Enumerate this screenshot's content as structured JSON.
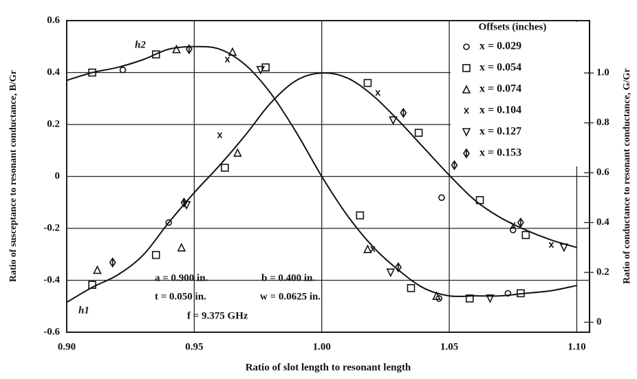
{
  "chart_data": {
    "type": "scatter",
    "xlabel": "Ratio of slot length to resonant length",
    "ylabel": "Ratio of susceptance to resonant conductance, B/Gr",
    "y2label": "Ratio of conductance to resonant conductance, G/Gr",
    "xlim": [
      0.9,
      1.105
    ],
    "xticks": [
      {
        "value": 0.9,
        "label": "0.90"
      },
      {
        "value": 0.95,
        "label": "0.95"
      },
      {
        "value": 1,
        "label": "1.00"
      },
      {
        "value": 1.05,
        "label": "1.05"
      },
      {
        "value": 1.1,
        "label": "1.10"
      }
    ],
    "ylim": [
      -0.6,
      0.6
    ],
    "yticks": [
      -0.6,
      -0.4,
      -0.2,
      0,
      0.2,
      0.4,
      0.6
    ],
    "y2lim": [
      -0.04,
      1.21
    ],
    "y2ticks": [
      0,
      0.2,
      0.4,
      0.6,
      0.8,
      {
        "value": 1,
        "label": "1.0"
      }
    ],
    "grid": true,
    "legend_title": "Offsets (inches)",
    "legend": "upper right",
    "curves": [
      {
        "name": "h2",
        "axis": "y",
        "x": [
          0.9,
          0.91,
          0.92,
          0.93,
          0.94,
          0.95,
          0.96,
          0.97,
          0.98,
          0.99,
          1.0,
          1.01,
          1.02,
          1.03,
          1.04,
          1.05,
          1.06,
          1.07,
          1.08,
          1.09,
          1.1
        ],
        "values": [
          0.37,
          0.4,
          0.42,
          0.45,
          0.49,
          0.5,
          0.49,
          0.43,
          0.32,
          0.17,
          0.0,
          -0.15,
          -0.27,
          -0.36,
          -0.43,
          -0.46,
          -0.46,
          -0.46,
          -0.45,
          -0.44,
          -0.42
        ]
      },
      {
        "name": "h1",
        "axis": "y2",
        "x": [
          0.9,
          0.91,
          0.92,
          0.93,
          0.94,
          0.95,
          0.96,
          0.97,
          0.98,
          0.99,
          1.0,
          1.01,
          1.02,
          1.03,
          1.04,
          1.05,
          1.06,
          1.07,
          1.08,
          1.09,
          1.1
        ],
        "values": [
          0.08,
          0.14,
          0.19,
          0.27,
          0.4,
          0.52,
          0.63,
          0.75,
          0.88,
          0.97,
          1.0,
          0.98,
          0.91,
          0.81,
          0.7,
          0.59,
          0.49,
          0.42,
          0.37,
          0.33,
          0.3
        ]
      }
    ],
    "series": [
      {
        "name": "x = 0.029",
        "marker": "circle",
        "x": [
          0.922,
          1.046,
          1.073
        ],
        "values": [
          0.41,
          -0.47,
          -0.45
        ],
        "g_x": [
          0.94,
          1.047,
          1.075
        ],
        "g_values": [
          0.4,
          0.5,
          0.37
        ]
      },
      {
        "name": "x = 0.054",
        "marker": "square",
        "x": [
          0.91,
          0.935,
          0.978,
          1.015,
          1.035,
          1.058,
          1.078
        ],
        "values": [
          0.4,
          0.47,
          0.42,
          -0.15,
          -0.43,
          -0.47,
          -0.45
        ],
        "g_x": [
          0.91,
          0.935,
          0.962,
          1.018,
          1.038,
          1.062,
          1.08
        ],
        "g_values": [
          0.15,
          0.27,
          0.62,
          0.96,
          0.76,
          0.49,
          0.35
        ]
      },
      {
        "name": "x = 0.074",
        "marker": "triangle",
        "x": [
          0.943,
          0.965,
          1.018,
          1.045
        ],
        "values": [
          0.49,
          0.48,
          -0.28,
          -0.46
        ],
        "g_x": [
          0.912,
          0.945,
          0.967
        ],
        "g_values": [
          0.21,
          0.3,
          0.68
        ]
      },
      {
        "name": "x = 0.104",
        "marker": "cross",
        "x": [
          0.963,
          1.02
        ],
        "values": [
          0.45,
          -0.28
        ],
        "g_x": [
          0.96,
          1.022,
          1.075,
          1.09
        ],
        "g_values": [
          0.75,
          0.92,
          0.39,
          0.31
        ]
      },
      {
        "name": "x = 0.127",
        "marker": "down-triangle",
        "x": [
          0.976,
          1.027,
          1.066
        ],
        "values": [
          0.41,
          -0.37,
          -0.47
        ],
        "g_x": [
          0.947,
          1.028,
          1.095
        ],
        "g_values": [
          0.47,
          0.81,
          0.3
        ]
      },
      {
        "name": "x = 0.153",
        "marker": "diamond",
        "x": [
          0.948,
          1.03
        ],
        "values": [
          0.49,
          -0.35
        ],
        "g_x": [
          0.918,
          0.946,
          1.032,
          1.052,
          1.078
        ],
        "g_values": [
          0.24,
          0.48,
          0.84,
          0.63,
          0.4
        ]
      }
    ],
    "annotations": [
      "a = 0.900 in.",
      "b = 0.400 in.",
      "t = 0.050 in.",
      "w = 0.0625 in.",
      "f = 9.375 GHz"
    ]
  }
}
